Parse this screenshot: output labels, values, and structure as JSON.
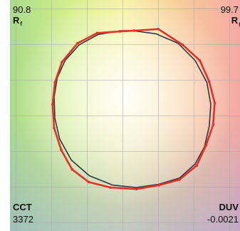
{
  "metrics": {
    "rf": {
      "value": "90.8",
      "label": "R",
      "sub": "f"
    },
    "rg": {
      "value": "99.7",
      "label": "R",
      "sub": "g"
    },
    "cct": {
      "label": "CCT",
      "value": "3372"
    },
    "duv": {
      "label": "DUV",
      "value": "-0.0021"
    }
  },
  "colors": {
    "test_source": "#e8302a",
    "reference": "#2d3b40"
  },
  "chart_data": {
    "type": "line",
    "grid": true,
    "xlim": [
      -1.7,
      1.7
    ],
    "ylim": [
      -1.7,
      1.7
    ],
    "series": [
      {
        "values_x": [
          0.02,
          0.33,
          0.64,
          0.86,
          0.98,
          1.05,
          1.03,
          0.94,
          0.82,
          0.6,
          0.34,
          0.05,
          -0.28,
          -0.56,
          -0.77,
          -0.91,
          -1.0,
          -1.02,
          -0.99,
          -0.9,
          -0.7,
          -0.45,
          -0.16
        ],
        "values_y": [
          1.0,
          1.02,
          0.82,
          0.62,
          0.35,
          0.08,
          -0.2,
          -0.46,
          -0.72,
          -0.9,
          -0.97,
          -1.02,
          -1.0,
          -0.93,
          -0.77,
          -0.52,
          -0.24,
          0.06,
          0.34,
          0.6,
          0.84,
          0.97,
          0.99
        ]
      },
      {
        "values_x": [
          0.0,
          0.3,
          0.58,
          0.8,
          0.95,
          1.0,
          0.98,
          0.92,
          0.8,
          0.6,
          0.33,
          0.05,
          -0.25,
          -0.55,
          -0.78,
          -0.93,
          -0.99,
          -1.0,
          -0.96,
          -0.86,
          -0.68,
          -0.44,
          -0.15
        ],
        "values_y": [
          1.0,
          0.96,
          0.84,
          0.62,
          0.34,
          0.06,
          -0.22,
          -0.48,
          -0.7,
          -0.88,
          -0.96,
          -1.0,
          -0.97,
          -0.85,
          -0.65,
          -0.38,
          -0.12,
          0.15,
          0.4,
          0.62,
          0.82,
          0.95,
          1.0
        ]
      }
    ]
  }
}
